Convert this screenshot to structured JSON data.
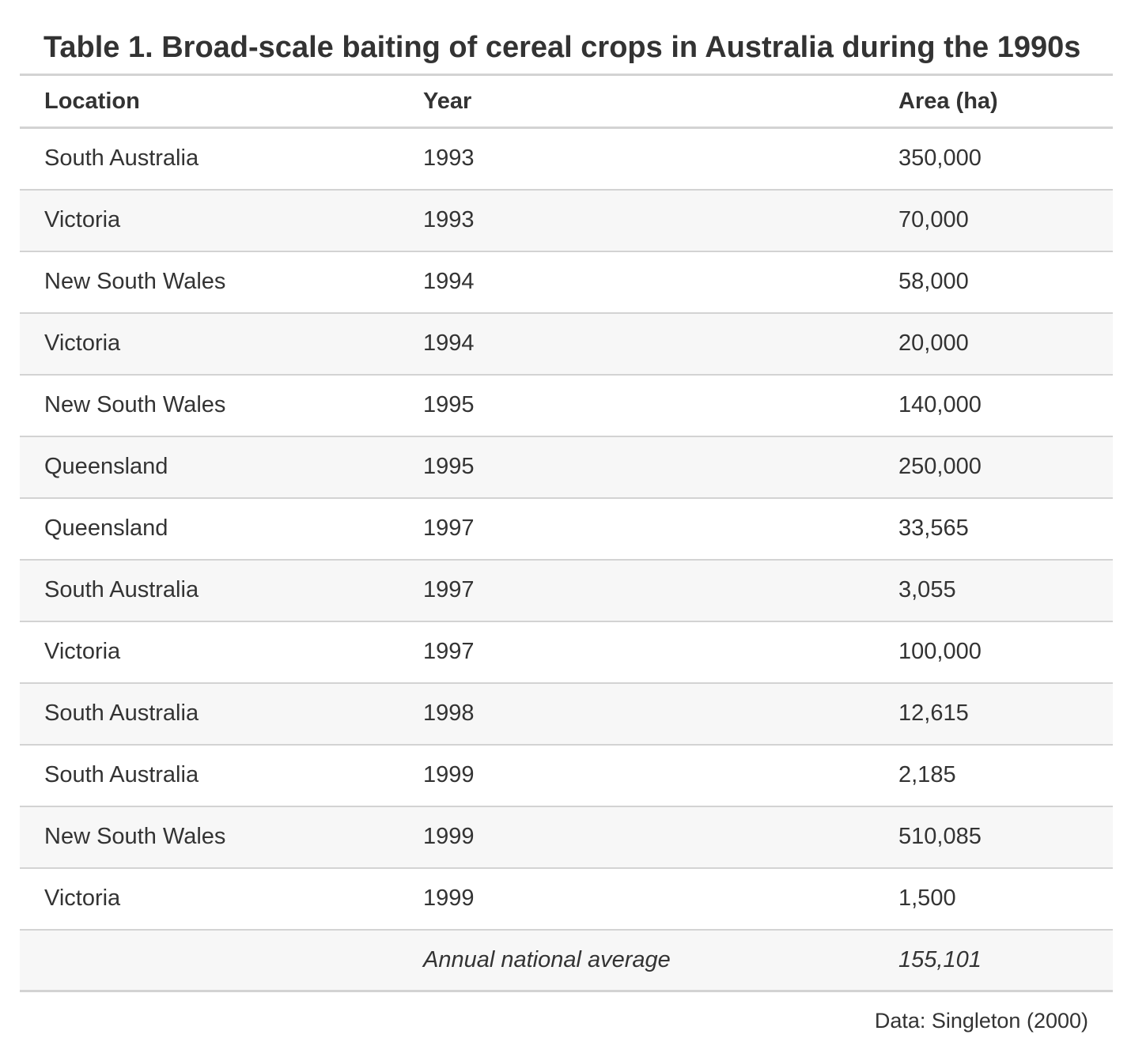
{
  "title": "Table 1. Broad-scale baiting of cereal crops in Australia during the 1990s",
  "columns": {
    "location": "Location",
    "year": "Year",
    "area": "Area (ha)"
  },
  "rows": [
    {
      "location": "South Australia",
      "year": "1993",
      "area": "350,000"
    },
    {
      "location": "Victoria",
      "year": "1993",
      "area": "70,000"
    },
    {
      "location": "New South Wales",
      "year": "1994",
      "area": "58,000"
    },
    {
      "location": "Victoria",
      "year": "1994",
      "area": "20,000"
    },
    {
      "location": "New South Wales",
      "year": "1995",
      "area": "140,000"
    },
    {
      "location": "Queensland",
      "year": "1995",
      "area": "250,000"
    },
    {
      "location": "Queensland",
      "year": "1997",
      "area": "33,565"
    },
    {
      "location": "South Australia",
      "year": "1997",
      "area": "3,055"
    },
    {
      "location": "Victoria",
      "year": "1997",
      "area": "100,000"
    },
    {
      "location": "South Australia",
      "year": "1998",
      "area": "12,615"
    },
    {
      "location": "South Australia",
      "year": "1999",
      "area": "2,185"
    },
    {
      "location": "New South Wales",
      "year": "1999",
      "area": "510,085"
    },
    {
      "location": "Victoria",
      "year": "1999",
      "area": "1,500"
    }
  ],
  "summary": {
    "location": "",
    "label": "Annual national average",
    "value": "155,101"
  },
  "source": "Data: Singleton (2000)"
}
